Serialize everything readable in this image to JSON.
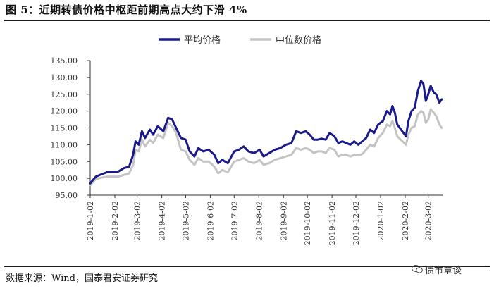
{
  "title": "图 5：近期转债价格中枢距前期高点大约下滑 4%",
  "source": "数据来源：Wind，国泰君安证券研究",
  "watermark": "债市覃谈",
  "chart_data": {
    "type": "line",
    "title": "",
    "xlabel": "",
    "ylabel": "",
    "ylim": [
      95,
      135
    ],
    "yticks": [
      "95.00",
      "100.00",
      "105.00",
      "110.00",
      "115.00",
      "120.00",
      "125.00",
      "130.00",
      "135.00"
    ],
    "xlim": [
      "2019-01-02",
      "2020-03-20"
    ],
    "xticks": [
      "2019-1-02",
      "2019-2-02",
      "2019-3-02",
      "2019-4-02",
      "2019-5-02",
      "2019-6-02",
      "2019-7-02",
      "2019-8-02",
      "2019-9-02",
      "2019-10-02",
      "2019-11-02",
      "2019-12-02",
      "2020-1-02",
      "2020-2-02",
      "2020-3-02"
    ],
    "xtick_dates": [
      "2019-01-02",
      "2019-02-02",
      "2019-03-02",
      "2019-04-02",
      "2019-05-02",
      "2019-06-02",
      "2019-07-02",
      "2019-08-02",
      "2019-09-02",
      "2019-10-02",
      "2019-11-02",
      "2019-12-02",
      "2020-01-02",
      "2020-02-02",
      "2020-03-02"
    ],
    "legend_position": "top-center",
    "grid": false,
    "series": [
      {
        "name": "平均价格",
        "color": "#1a1a8c",
        "points": [
          [
            "2019-01-02",
            98.5
          ],
          [
            "2019-01-09",
            100.5
          ],
          [
            "2019-01-16",
            101.2
          ],
          [
            "2019-01-23",
            101.8
          ],
          [
            "2019-01-30",
            102.0
          ],
          [
            "2019-02-06",
            102.0
          ],
          [
            "2019-02-13",
            103.0
          ],
          [
            "2019-02-20",
            103.5
          ],
          [
            "2019-02-25",
            107.0
          ],
          [
            "2019-02-28",
            111.0
          ],
          [
            "2019-03-04",
            110.0
          ],
          [
            "2019-03-08",
            114.0
          ],
          [
            "2019-03-12",
            112.0
          ],
          [
            "2019-03-18",
            114.5
          ],
          [
            "2019-03-22",
            113.0
          ],
          [
            "2019-03-28",
            115.5
          ],
          [
            "2019-04-04",
            114.0
          ],
          [
            "2019-04-10",
            118.0
          ],
          [
            "2019-04-15",
            117.5
          ],
          [
            "2019-04-20",
            115.0
          ],
          [
            "2019-04-26",
            112.0
          ],
          [
            "2019-05-02",
            111.5
          ],
          [
            "2019-05-07",
            108.0
          ],
          [
            "2019-05-13",
            106.5
          ],
          [
            "2019-05-18",
            109.0
          ],
          [
            "2019-05-24",
            108.0
          ],
          [
            "2019-05-31",
            108.5
          ],
          [
            "2019-06-07",
            107.0
          ],
          [
            "2019-06-12",
            104.5
          ],
          [
            "2019-06-17",
            105.5
          ],
          [
            "2019-06-24",
            104.5
          ],
          [
            "2019-07-02",
            108.0
          ],
          [
            "2019-07-08",
            108.5
          ],
          [
            "2019-07-14",
            109.5
          ],
          [
            "2019-07-20",
            108.0
          ],
          [
            "2019-07-27",
            107.5
          ],
          [
            "2019-08-03",
            108.5
          ],
          [
            "2019-08-08",
            106.5
          ],
          [
            "2019-08-15",
            107.5
          ],
          [
            "2019-08-22",
            108.5
          ],
          [
            "2019-08-29",
            109.0
          ],
          [
            "2019-09-05",
            110.0
          ],
          [
            "2019-09-12",
            110.5
          ],
          [
            "2019-09-18",
            114.0
          ],
          [
            "2019-09-24",
            113.5
          ],
          [
            "2019-09-30",
            114.0
          ],
          [
            "2019-10-05",
            113.0
          ],
          [
            "2019-10-10",
            111.5
          ],
          [
            "2019-10-15",
            111.5
          ],
          [
            "2019-10-20",
            111.8
          ],
          [
            "2019-10-25",
            111.5
          ],
          [
            "2019-10-30",
            113.5
          ],
          [
            "2019-11-05",
            112.5
          ],
          [
            "2019-11-10",
            110.5
          ],
          [
            "2019-11-15",
            111.0
          ],
          [
            "2019-11-20",
            110.5
          ],
          [
            "2019-11-25",
            110.0
          ],
          [
            "2019-11-30",
            111.0
          ],
          [
            "2019-12-05",
            110.0
          ],
          [
            "2019-12-10",
            111.0
          ],
          [
            "2019-12-15",
            112.0
          ],
          [
            "2019-12-20",
            114.5
          ],
          [
            "2019-12-25",
            113.5
          ],
          [
            "2019-12-30",
            116.0
          ],
          [
            "2020-01-05",
            117.0
          ],
          [
            "2020-01-10",
            120.0
          ],
          [
            "2020-01-14",
            119.0
          ],
          [
            "2020-01-17",
            121.5
          ],
          [
            "2020-01-20",
            119.5
          ],
          [
            "2020-01-23",
            116.0
          ],
          [
            "2020-02-03",
            112.5
          ],
          [
            "2020-02-06",
            117.0
          ],
          [
            "2020-02-10",
            120.0
          ],
          [
            "2020-02-14",
            121.0
          ],
          [
            "2020-02-18",
            126.0
          ],
          [
            "2020-02-22",
            129.0
          ],
          [
            "2020-02-25",
            128.0
          ],
          [
            "2020-02-28",
            123.0
          ],
          [
            "2020-03-02",
            125.0
          ],
          [
            "2020-03-05",
            127.5
          ],
          [
            "2020-03-09",
            125.5
          ],
          [
            "2020-03-12",
            125.0
          ],
          [
            "2020-03-16",
            122.5
          ],
          [
            "2020-03-19",
            123.5
          ]
        ]
      },
      {
        "name": "中位数价格",
        "color": "#c4c4c4",
        "points": [
          [
            "2019-01-02",
            98.0
          ],
          [
            "2019-01-09",
            99.8
          ],
          [
            "2019-01-16",
            100.2
          ],
          [
            "2019-01-23",
            100.5
          ],
          [
            "2019-01-30",
            100.5
          ],
          [
            "2019-02-06",
            100.5
          ],
          [
            "2019-02-13",
            101.0
          ],
          [
            "2019-02-20",
            101.5
          ],
          [
            "2019-02-25",
            104.0
          ],
          [
            "2019-02-28",
            108.5
          ],
          [
            "2019-03-04",
            108.0
          ],
          [
            "2019-03-08",
            111.5
          ],
          [
            "2019-03-12",
            109.5
          ],
          [
            "2019-03-18",
            111.5
          ],
          [
            "2019-03-22",
            110.5
          ],
          [
            "2019-03-28",
            113.0
          ],
          [
            "2019-04-04",
            112.0
          ],
          [
            "2019-04-10",
            116.5
          ],
          [
            "2019-04-15",
            115.5
          ],
          [
            "2019-04-20",
            113.5
          ],
          [
            "2019-04-26",
            108.5
          ],
          [
            "2019-05-02",
            108.0
          ],
          [
            "2019-05-07",
            105.5
          ],
          [
            "2019-05-13",
            104.0
          ],
          [
            "2019-05-18",
            106.0
          ],
          [
            "2019-05-24",
            105.0
          ],
          [
            "2019-05-31",
            105.0
          ],
          [
            "2019-06-07",
            103.5
          ],
          [
            "2019-06-12",
            101.5
          ],
          [
            "2019-06-17",
            102.5
          ],
          [
            "2019-06-24",
            101.8
          ],
          [
            "2019-07-02",
            105.0
          ],
          [
            "2019-07-08",
            105.5
          ],
          [
            "2019-07-14",
            106.0
          ],
          [
            "2019-07-20",
            105.0
          ],
          [
            "2019-07-27",
            104.5
          ],
          [
            "2019-08-03",
            105.5
          ],
          [
            "2019-08-08",
            104.0
          ],
          [
            "2019-08-15",
            104.5
          ],
          [
            "2019-08-22",
            105.5
          ],
          [
            "2019-08-29",
            106.0
          ],
          [
            "2019-09-05",
            106.5
          ],
          [
            "2019-09-12",
            107.0
          ],
          [
            "2019-09-18",
            109.0
          ],
          [
            "2019-09-24",
            108.5
          ],
          [
            "2019-09-30",
            109.0
          ],
          [
            "2019-10-05",
            108.5
          ],
          [
            "2019-10-10",
            107.5
          ],
          [
            "2019-10-15",
            108.0
          ],
          [
            "2019-10-20",
            108.0
          ],
          [
            "2019-10-25",
            107.5
          ],
          [
            "2019-10-30",
            109.0
          ],
          [
            "2019-11-05",
            108.5
          ],
          [
            "2019-11-10",
            106.5
          ],
          [
            "2019-11-15",
            107.0
          ],
          [
            "2019-11-20",
            107.0
          ],
          [
            "2019-11-25",
            106.5
          ],
          [
            "2019-11-30",
            107.0
          ],
          [
            "2019-12-05",
            106.8
          ],
          [
            "2019-12-10",
            107.2
          ],
          [
            "2019-12-15",
            108.5
          ],
          [
            "2019-12-20",
            110.0
          ],
          [
            "2019-12-25",
            109.5
          ],
          [
            "2019-12-30",
            112.0
          ],
          [
            "2020-01-05",
            113.5
          ],
          [
            "2020-01-10",
            116.0
          ],
          [
            "2020-01-14",
            115.5
          ],
          [
            "2020-01-17",
            117.0
          ],
          [
            "2020-01-20",
            115.0
          ],
          [
            "2020-01-23",
            112.5
          ],
          [
            "2020-02-03",
            110.0
          ],
          [
            "2020-02-06",
            113.0
          ],
          [
            "2020-02-10",
            115.0
          ],
          [
            "2020-02-14",
            115.5
          ],
          [
            "2020-02-18",
            119.0
          ],
          [
            "2020-02-22",
            120.0
          ],
          [
            "2020-02-25",
            119.5
          ],
          [
            "2020-02-28",
            116.5
          ],
          [
            "2020-03-02",
            117.5
          ],
          [
            "2020-03-05",
            120.5
          ],
          [
            "2020-03-09",
            119.5
          ],
          [
            "2020-03-12",
            118.5
          ],
          [
            "2020-03-16",
            116.0
          ],
          [
            "2020-03-19",
            115.0
          ]
        ]
      }
    ]
  }
}
